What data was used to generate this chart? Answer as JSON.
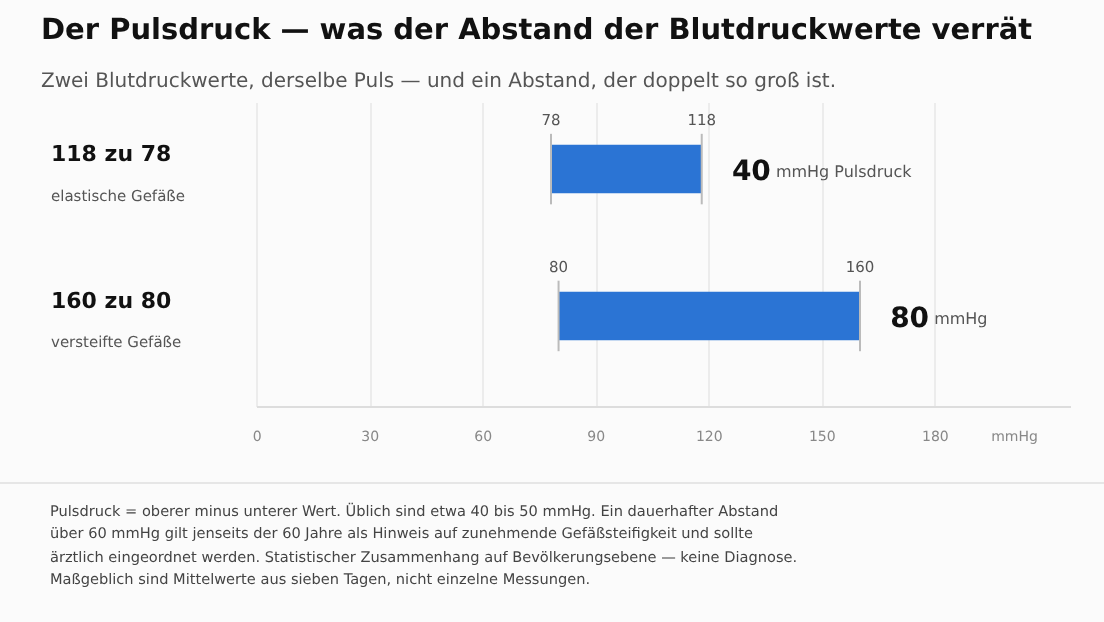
{
  "chart_data": {
    "type": "bar",
    "orientation": "horizontal",
    "title": "Der Pulsdruck — was der Abstand der Blutdruckwerte verrät",
    "subtitle": "Zwei Blutdruckwerte, derselbe Puls — und ein Abstand, der doppelt so groß ist.",
    "categories": [
      "118 zu 78\nelastische Gefäße",
      "160 zu 80\nversteifte Gefäße"
    ],
    "base": [
      78,
      80
    ],
    "values": [
      40,
      80
    ],
    "color": "#2b74d4",
    "value_labels": [
      "40 mmHg Pulsdruck",
      "80 mmHg"
    ],
    "xlabel": "mmHg",
    "xlim": [
      0,
      216
    ],
    "xticks": [
      0,
      30,
      60,
      90,
      120,
      150,
      180
    ],
    "grid": "x",
    "annotations": [
      {
        "text": "78",
        "x": 78,
        "y": "118 zu 78\nelastische Gefäße"
      },
      {
        "text": "118",
        "x": 118,
        "y": "118 zu 78\nelastische Gefäße"
      },
      {
        "text": "80",
        "x": 80,
        "y": "160 zu 80\nversteifte Gefäße"
      },
      {
        "text": "160",
        "x": 160,
        "y": "160 zu 80\nversteifte Gefäße"
      },
      "Pulsdruck = oberer minus unterer Wert. Üblich sind etwa 40 bis 50 mmHg. Ein dauerhafter Abstand über 60 mmHg gilt jenseits der 60 Jahre als Hinweis auf zunehmende Gefäßsteifigkeit und sollte ärztlich eingeordnet werden. Statistischer Zusammenhang auf Bevölkerungsebene — keine Diagnose. Maßgeblich sind Mittelwerte aus sieben Tagen, nicht einzelne Messungen."
    ]
  }
}
